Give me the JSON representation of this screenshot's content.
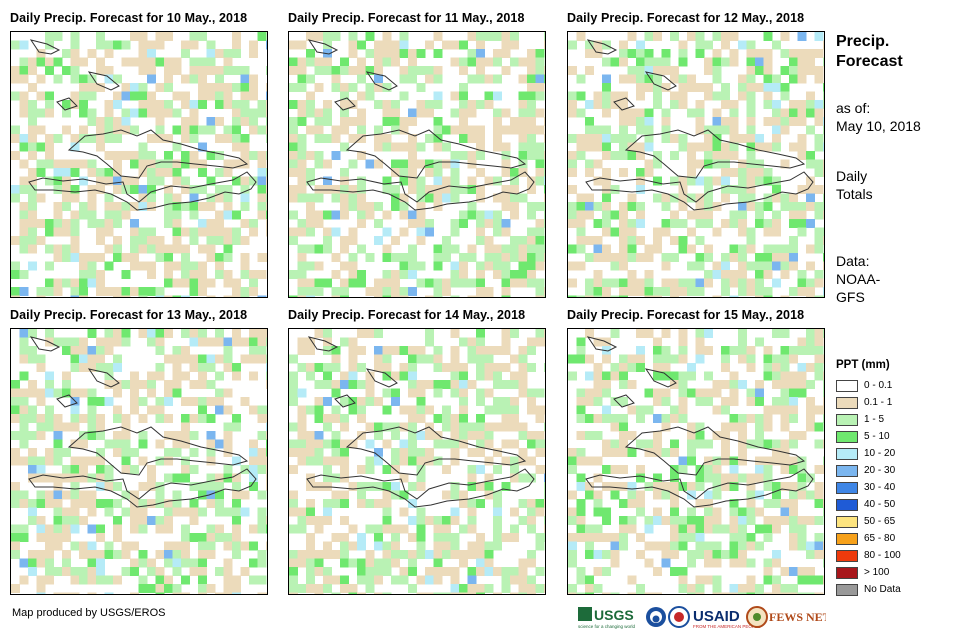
{
  "panels": [
    {
      "title": "Daily Precip. Forecast for 10 May., 2018",
      "seed": 11
    },
    {
      "title": "Daily Precip. Forecast for 11 May., 2018",
      "seed": 23
    },
    {
      "title": "Daily Precip. Forecast for 12 May., 2018",
      "seed": 37
    },
    {
      "title": "Daily Precip. Forecast for 13 May., 2018",
      "seed": 41
    },
    {
      "title": "Daily Precip. Forecast for 14 May., 2018",
      "seed": 53
    },
    {
      "title": "Daily Precip. Forecast for 15 May., 2018",
      "seed": 67
    }
  ],
  "info": {
    "title_line1": "Precip.",
    "title_line2": "Forecast",
    "as_of_label": "as of:",
    "as_of_date": "May 10, 2018",
    "totals_line1": "Daily",
    "totals_line2": "Totals",
    "data_line1": "Data:",
    "data_line2": "NOAA-",
    "data_line3": "GFS"
  },
  "legend": {
    "title": "PPT (mm)",
    "items": [
      {
        "label": "0 - 0.1",
        "color": "#ffffff"
      },
      {
        "label": "0.1 - 1",
        "color": "#ecdbbb"
      },
      {
        "label": "1 - 5",
        "color": "#b9f2b4"
      },
      {
        "label": "5 - 10",
        "color": "#6fe86f"
      },
      {
        "label": "10 - 20",
        "color": "#b5ebf7"
      },
      {
        "label": "20 - 30",
        "color": "#7bb6ef"
      },
      {
        "label": "30 - 40",
        "color": "#3f86e6"
      },
      {
        "label": "40 - 50",
        "color": "#1f5bd6"
      },
      {
        "label": "50 - 65",
        "color": "#fde47f"
      },
      {
        "label": "65 - 80",
        "color": "#f7a11a"
      },
      {
        "label": "80 - 100",
        "color": "#ef3a0c"
      },
      {
        "label": "> 100",
        "color": "#a8161b"
      },
      {
        "label": "No Data",
        "color": "#999999"
      }
    ]
  },
  "credit": "Map produced by USGS/EROS",
  "logos": {
    "usgs": "USGS",
    "usgs_tagline": "science for a changing world",
    "usaid": "USAID",
    "usaid_tagline": "FROM THE AMERICAN PEOPLE",
    "fewsnet": "FEWS NET"
  }
}
